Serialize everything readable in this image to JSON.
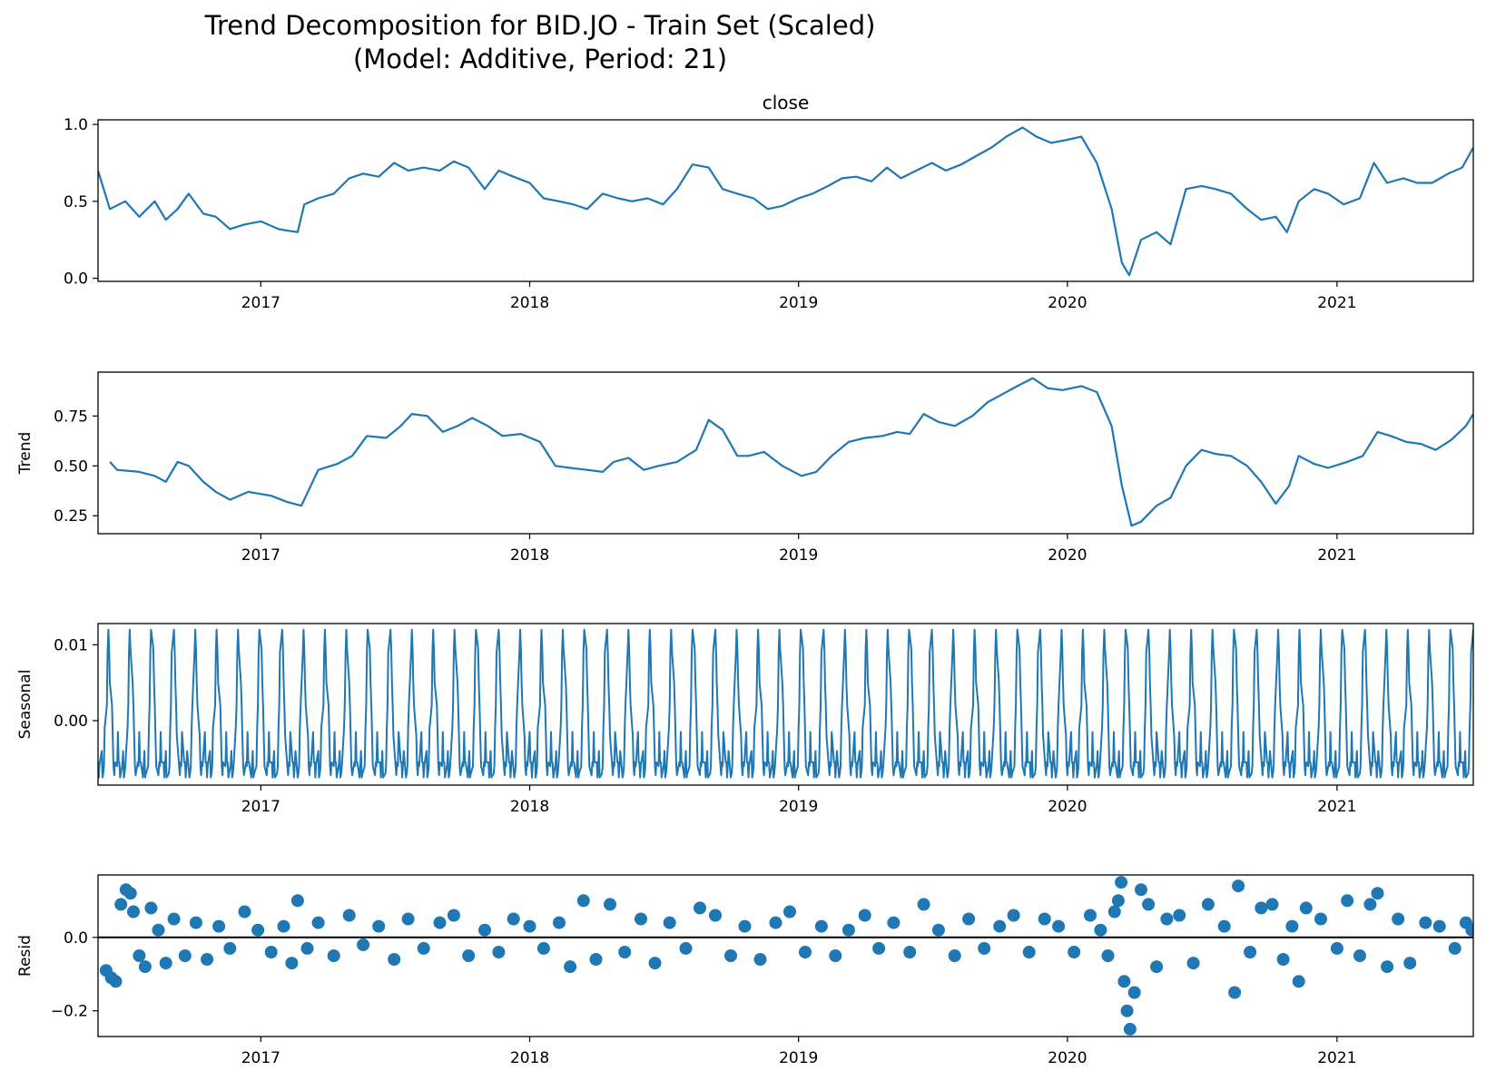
{
  "title": {
    "line1": "Trend Decomposition for BID.JO - Train Set (Scaled)",
    "line2": "(Model: Additive, Period: 21)"
  },
  "colors": {
    "series": "#1f77b4",
    "axis": "#000000",
    "zero_line": "#000000",
    "background": "#ffffff"
  },
  "chart_data": [
    {
      "type": "line",
      "title": "close",
      "ylabel": "",
      "xlim": [
        "2016-05-25",
        "2021-07-05"
      ],
      "ylim": [
        -0.02,
        1.03
      ],
      "yticks": [
        0.0,
        0.5,
        1.0
      ],
      "ytick_labels": [
        "0.0",
        "0.5",
        "1.0"
      ],
      "xticks": [
        "2017-01-01",
        "2018-01-01",
        "2019-01-01",
        "2020-01-01",
        "2021-01-01"
      ],
      "xtick_labels": [
        "2017",
        "2018",
        "2019",
        "2020",
        "2021"
      ],
      "grid": false,
      "x": [
        "2016-05-25",
        "2016-06-10",
        "2016-07-01",
        "2016-07-20",
        "2016-08-10",
        "2016-08-25",
        "2016-09-10",
        "2016-09-25",
        "2016-10-15",
        "2016-11-01",
        "2016-11-20",
        "2016-12-10",
        "2017-01-01",
        "2017-01-25",
        "2017-02-20",
        "2017-03-01",
        "2017-03-20",
        "2017-04-10",
        "2017-05-01",
        "2017-05-20",
        "2017-06-10",
        "2017-07-01",
        "2017-07-20",
        "2017-08-10",
        "2017-09-01",
        "2017-09-20",
        "2017-10-10",
        "2017-11-01",
        "2017-11-20",
        "2017-12-10",
        "2018-01-01",
        "2018-01-20",
        "2018-02-10",
        "2018-03-01",
        "2018-03-20",
        "2018-04-10",
        "2018-05-01",
        "2018-05-20",
        "2018-06-10",
        "2018-07-01",
        "2018-07-20",
        "2018-08-10",
        "2018-09-01",
        "2018-09-20",
        "2018-10-10",
        "2018-11-01",
        "2018-11-20",
        "2018-12-10",
        "2019-01-01",
        "2019-01-20",
        "2019-02-10",
        "2019-03-01",
        "2019-03-20",
        "2019-04-10",
        "2019-05-01",
        "2019-05-20",
        "2019-06-10",
        "2019-07-01",
        "2019-07-20",
        "2019-08-10",
        "2019-09-01",
        "2019-09-20",
        "2019-10-10",
        "2019-11-01",
        "2019-11-20",
        "2019-12-10",
        "2020-01-01",
        "2020-01-20",
        "2020-02-10",
        "2020-03-01",
        "2020-03-15",
        "2020-03-25",
        "2020-04-10",
        "2020-05-01",
        "2020-05-20",
        "2020-06-10",
        "2020-07-01",
        "2020-07-20",
        "2020-08-10",
        "2020-09-01",
        "2020-09-20",
        "2020-10-10",
        "2020-10-25",
        "2020-11-10",
        "2020-12-01",
        "2020-12-20",
        "2021-01-10",
        "2021-02-01",
        "2021-02-20",
        "2021-03-10",
        "2021-04-01",
        "2021-04-20",
        "2021-05-10",
        "2021-06-01",
        "2021-06-20",
        "2021-07-05"
      ],
      "y": [
        0.7,
        0.45,
        0.5,
        0.4,
        0.5,
        0.38,
        0.45,
        0.55,
        0.42,
        0.4,
        0.32,
        0.35,
        0.37,
        0.32,
        0.3,
        0.48,
        0.52,
        0.55,
        0.65,
        0.68,
        0.66,
        0.75,
        0.7,
        0.72,
        0.7,
        0.76,
        0.72,
        0.58,
        0.7,
        0.66,
        0.62,
        0.52,
        0.5,
        0.48,
        0.45,
        0.55,
        0.52,
        0.5,
        0.52,
        0.48,
        0.58,
        0.74,
        0.72,
        0.58,
        0.55,
        0.52,
        0.45,
        0.47,
        0.52,
        0.55,
        0.6,
        0.65,
        0.66,
        0.63,
        0.72,
        0.65,
        0.7,
        0.75,
        0.7,
        0.74,
        0.8,
        0.85,
        0.92,
        0.98,
        0.92,
        0.88,
        0.9,
        0.92,
        0.75,
        0.45,
        0.1,
        0.02,
        0.25,
        0.3,
        0.22,
        0.58,
        0.6,
        0.58,
        0.55,
        0.45,
        0.38,
        0.4,
        0.3,
        0.5,
        0.58,
        0.55,
        0.48,
        0.52,
        0.75,
        0.62,
        0.65,
        0.62,
        0.62,
        0.68,
        0.72,
        0.85
      ]
    },
    {
      "type": "line",
      "title": "",
      "ylabel": "Trend",
      "xlim": [
        "2016-05-25",
        "2021-07-05"
      ],
      "ylim": [
        0.16,
        0.97
      ],
      "yticks": [
        0.25,
        0.5,
        0.75
      ],
      "ytick_labels": [
        "0.25",
        "0.50",
        "0.75"
      ],
      "xticks": [
        "2017-01-01",
        "2018-01-01",
        "2019-01-01",
        "2020-01-01",
        "2021-01-01"
      ],
      "xtick_labels": [
        "2017",
        "2018",
        "2019",
        "2020",
        "2021"
      ],
      "grid": false,
      "x": [
        "2016-06-10",
        "2016-06-20",
        "2016-07-20",
        "2016-08-10",
        "2016-08-25",
        "2016-09-10",
        "2016-09-25",
        "2016-10-15",
        "2016-11-01",
        "2016-11-20",
        "2016-12-15",
        "2017-01-15",
        "2017-02-05",
        "2017-02-25",
        "2017-03-20",
        "2017-04-15",
        "2017-05-05",
        "2017-05-25",
        "2017-06-20",
        "2017-07-10",
        "2017-07-25",
        "2017-08-15",
        "2017-09-05",
        "2017-09-25",
        "2017-10-15",
        "2017-11-05",
        "2017-11-25",
        "2017-12-20",
        "2018-01-15",
        "2018-02-05",
        "2018-02-25",
        "2018-03-20",
        "2018-04-10",
        "2018-04-25",
        "2018-05-15",
        "2018-06-05",
        "2018-06-25",
        "2018-07-20",
        "2018-08-15",
        "2018-09-01",
        "2018-09-20",
        "2018-10-10",
        "2018-10-25",
        "2018-11-15",
        "2018-12-10",
        "2019-01-05",
        "2019-01-25",
        "2019-02-15",
        "2019-03-10",
        "2019-04-01",
        "2019-04-25",
        "2019-05-15",
        "2019-06-01",
        "2019-06-20",
        "2019-07-10",
        "2019-08-01",
        "2019-08-25",
        "2019-09-15",
        "2019-10-05",
        "2019-10-25",
        "2019-11-15",
        "2019-12-05",
        "2019-12-25",
        "2020-01-20",
        "2020-02-10",
        "2020-03-01",
        "2020-03-15",
        "2020-03-28",
        "2020-04-10",
        "2020-05-01",
        "2020-05-20",
        "2020-06-10",
        "2020-07-01",
        "2020-07-20",
        "2020-08-10",
        "2020-09-01",
        "2020-09-20",
        "2020-10-10",
        "2020-10-28",
        "2020-11-10",
        "2020-12-01",
        "2020-12-20",
        "2021-01-15",
        "2021-02-05",
        "2021-02-25",
        "2021-03-15",
        "2021-04-05",
        "2021-04-25",
        "2021-05-15",
        "2021-06-05",
        "2021-06-25",
        "2021-07-05"
      ],
      "y": [
        0.52,
        0.48,
        0.47,
        0.45,
        0.42,
        0.52,
        0.5,
        0.42,
        0.37,
        0.33,
        0.37,
        0.35,
        0.32,
        0.3,
        0.48,
        0.51,
        0.55,
        0.65,
        0.64,
        0.7,
        0.76,
        0.75,
        0.67,
        0.7,
        0.74,
        0.7,
        0.65,
        0.66,
        0.62,
        0.5,
        0.49,
        0.48,
        0.47,
        0.52,
        0.54,
        0.48,
        0.5,
        0.52,
        0.58,
        0.73,
        0.68,
        0.55,
        0.55,
        0.57,
        0.5,
        0.45,
        0.47,
        0.55,
        0.62,
        0.64,
        0.65,
        0.67,
        0.66,
        0.76,
        0.72,
        0.7,
        0.75,
        0.82,
        0.86,
        0.9,
        0.94,
        0.89,
        0.88,
        0.9,
        0.87,
        0.7,
        0.4,
        0.2,
        0.22,
        0.3,
        0.34,
        0.5,
        0.58,
        0.56,
        0.55,
        0.5,
        0.42,
        0.31,
        0.4,
        0.55,
        0.51,
        0.49,
        0.52,
        0.55,
        0.67,
        0.65,
        0.62,
        0.61,
        0.58,
        0.63,
        0.7,
        0.76
      ]
    },
    {
      "type": "line",
      "title": "",
      "ylabel": "Seasonal",
      "xlim": [
        "2016-05-25",
        "2021-07-05"
      ],
      "ylim": [
        -0.0085,
        0.0128
      ],
      "yticks": [
        0.0,
        0.01
      ],
      "ytick_labels": [
        "0.00",
        "0.01"
      ],
      "xticks": [
        "2017-01-01",
        "2018-01-01",
        "2019-01-01",
        "2020-01-01",
        "2021-01-01"
      ],
      "xtick_labels": [
        "2017",
        "2018",
        "2019",
        "2020",
        "2021"
      ],
      "grid": false,
      "period": 21,
      "start": "2016-05-25",
      "end": "2021-07-05",
      "one_period_pattern": [
        -0.0055,
        -0.0075,
        -0.0058,
        -0.004,
        -0.0075,
        -0.007,
        -0.006,
        -0.001,
        0.002,
        0.009,
        0.012,
        0.0095,
        0.005,
        0.002,
        -0.002,
        -0.006,
        -0.0072,
        -0.0055,
        -0.006,
        -0.0015,
        -0.0055
      ]
    },
    {
      "type": "scatter",
      "title": "",
      "ylabel": "Resid",
      "xlim": [
        "2016-05-25",
        "2021-07-05"
      ],
      "ylim": [
        -0.27,
        0.17
      ],
      "yticks": [
        -0.2,
        0.0
      ],
      "ytick_labels": [
        "−0.2",
        "0.0"
      ],
      "xticks": [
        "2017-01-01",
        "2018-01-01",
        "2019-01-01",
        "2020-01-01",
        "2021-01-01"
      ],
      "xtick_labels": [
        "2017",
        "2018",
        "2019",
        "2020",
        "2021"
      ],
      "grid": false,
      "zero_line": true,
      "x": [
        "2016-06-05",
        "2016-06-12",
        "2016-06-18",
        "2016-06-25",
        "2016-07-02",
        "2016-07-08",
        "2016-07-12",
        "2016-07-20",
        "2016-07-28",
        "2016-08-05",
        "2016-08-15",
        "2016-08-25",
        "2016-09-05",
        "2016-09-20",
        "2016-10-05",
        "2016-10-20",
        "2016-11-05",
        "2016-11-20",
        "2016-12-10",
        "2016-12-28",
        "2017-01-15",
        "2017-02-01",
        "2017-02-12",
        "2017-02-20",
        "2017-03-05",
        "2017-03-20",
        "2017-04-10",
        "2017-05-01",
        "2017-05-20",
        "2017-06-10",
        "2017-07-01",
        "2017-07-20",
        "2017-08-10",
        "2017-09-01",
        "2017-09-20",
        "2017-10-10",
        "2017-11-01",
        "2017-11-20",
        "2017-12-10",
        "2018-01-01",
        "2018-01-20",
        "2018-02-10",
        "2018-02-25",
        "2018-03-15",
        "2018-04-01",
        "2018-04-20",
        "2018-05-10",
        "2018-06-01",
        "2018-06-20",
        "2018-07-10",
        "2018-08-01",
        "2018-08-20",
        "2018-09-10",
        "2018-10-01",
        "2018-10-20",
        "2018-11-10",
        "2018-12-01",
        "2018-12-20",
        "2019-01-10",
        "2019-02-01",
        "2019-02-20",
        "2019-03-10",
        "2019-04-01",
        "2019-04-20",
        "2019-05-10",
        "2019-06-01",
        "2019-06-20",
        "2019-07-10",
        "2019-08-01",
        "2019-08-20",
        "2019-09-10",
        "2019-10-01",
        "2019-10-20",
        "2019-11-10",
        "2019-12-01",
        "2019-12-20",
        "2020-01-10",
        "2020-02-01",
        "2020-02-15",
        "2020-02-25",
        "2020-03-05",
        "2020-03-10",
        "2020-03-14",
        "2020-03-18",
        "2020-03-22",
        "2020-03-26",
        "2020-04-01",
        "2020-04-10",
        "2020-04-20",
        "2020-05-01",
        "2020-05-15",
        "2020-06-01",
        "2020-06-20",
        "2020-07-10",
        "2020-08-01",
        "2020-08-15",
        "2020-08-20",
        "2020-09-05",
        "2020-09-20",
        "2020-10-05",
        "2020-10-20",
        "2020-11-01",
        "2020-11-10",
        "2020-11-20",
        "2020-12-10",
        "2021-01-01",
        "2021-01-15",
        "2021-02-01",
        "2021-02-15",
        "2021-02-25",
        "2021-03-10",
        "2021-03-25",
        "2021-04-10",
        "2021-05-01",
        "2021-05-20",
        "2021-06-10",
        "2021-06-25",
        "2021-07-03"
      ],
      "y": [
        -0.09,
        -0.11,
        -0.12,
        0.09,
        0.13,
        0.12,
        0.07,
        -0.05,
        -0.08,
        0.08,
        0.02,
        -0.07,
        0.05,
        -0.05,
        0.04,
        -0.06,
        0.03,
        -0.03,
        0.07,
        0.02,
        -0.04,
        0.03,
        -0.07,
        0.1,
        -0.03,
        0.04,
        -0.05,
        0.06,
        -0.02,
        0.03,
        -0.06,
        0.05,
        -0.03,
        0.04,
        0.06,
        -0.05,
        0.02,
        -0.04,
        0.05,
        0.03,
        -0.03,
        0.04,
        -0.08,
        0.1,
        -0.06,
        0.09,
        -0.04,
        0.05,
        -0.07,
        0.04,
        -0.03,
        0.08,
        0.06,
        -0.05,
        0.03,
        -0.06,
        0.04,
        0.07,
        -0.04,
        0.03,
        -0.05,
        0.02,
        0.06,
        -0.03,
        0.04,
        -0.04,
        0.09,
        0.02,
        -0.05,
        0.05,
        -0.03,
        0.03,
        0.06,
        -0.04,
        0.05,
        0.03,
        -0.04,
        0.06,
        0.02,
        -0.05,
        0.07,
        0.1,
        0.15,
        -0.12,
        -0.2,
        -0.25,
        -0.15,
        0.13,
        0.09,
        -0.08,
        0.05,
        0.06,
        -0.07,
        0.09,
        0.03,
        -0.15,
        0.14,
        -0.04,
        0.08,
        0.09,
        -0.06,
        0.03,
        -0.12,
        0.08,
        0.05,
        -0.03,
        0.1,
        -0.05,
        0.09,
        0.12,
        -0.08,
        0.05,
        -0.07,
        0.04,
        0.03,
        -0.03,
        0.04,
        0.02
      ]
    }
  ]
}
